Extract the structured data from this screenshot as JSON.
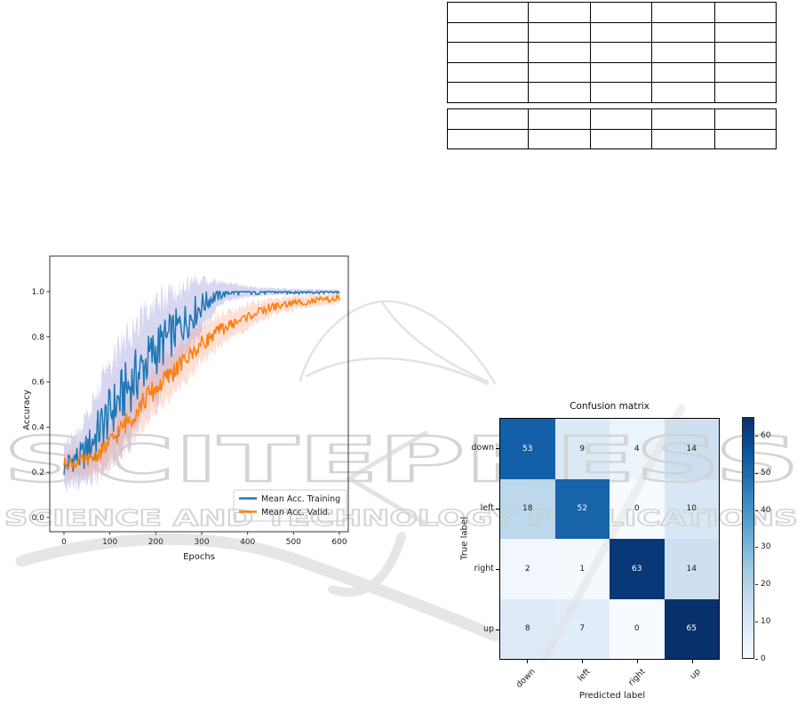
{
  "watermark": {
    "line1": "SCITEPRESS",
    "line2": "SCIENCE AND TECHNOLOGY PUBLICATIONS",
    "color": "#d4d4d4"
  },
  "tables": {
    "section1": {
      "rows": 5,
      "cols": 5
    },
    "section2": {
      "rows": 2,
      "cols": 5
    },
    "cell_text": ""
  },
  "chart_data": [
    {
      "type": "line",
      "title": "",
      "xlabel": "Epochs",
      "ylabel": "Accuracy",
      "xticks": [
        0,
        100,
        200,
        300,
        400,
        500,
        600
      ],
      "yticks": [
        "0.0",
        "0.2",
        "0.4",
        "0.6",
        "0.8",
        "1.0"
      ],
      "xlim": [
        -30,
        620
      ],
      "ylim": [
        -0.05,
        1.16
      ],
      "legend_position": "lower right",
      "series": [
        {
          "name": "Mean Acc. Training",
          "color": "#1f77b4",
          "band_color": "rgba(130,130,216,0.32)",
          "clamp_max": 1.0,
          "keypoints": {
            "epochs": [
              0,
              20,
              40,
              60,
              80,
              100,
              120,
              140,
              160,
              180,
              200,
              220,
              240,
              260,
              280,
              300,
              320,
              340,
              360,
              400,
              450,
              500,
              550,
              600
            ],
            "mean": [
              0.22,
              0.26,
              0.27,
              0.33,
              0.4,
              0.46,
              0.52,
              0.58,
              0.63,
              0.69,
              0.74,
              0.78,
              0.82,
              0.86,
              0.9,
              0.94,
              0.97,
              0.99,
              1.0,
              1.0,
              1.0,
              1.0,
              1.0,
              1.0
            ],
            "noise": [
              0.05,
              0.06,
              0.07,
              0.09,
              0.11,
              0.12,
              0.13,
              0.13,
              0.13,
              0.12,
              0.12,
              0.11,
              0.1,
              0.09,
              0.08,
              0.06,
              0.04,
              0.03,
              0.02,
              0.015,
              0.012,
              0.01,
              0.01,
              0.01
            ],
            "band": [
              0.12,
              0.14,
              0.17,
              0.22,
              0.26,
              0.28,
              0.3,
              0.3,
              0.3,
              0.29,
              0.28,
              0.26,
              0.24,
              0.21,
              0.18,
              0.14,
              0.1,
              0.07,
              0.05,
              0.03,
              0.02,
              0.015,
              0.012,
              0.01
            ]
          }
        },
        {
          "name": "Mean Acc. Valid.",
          "color": "#ff7f0e",
          "band_color": "rgba(247,150,120,0.30)",
          "clamp_max": 0.985,
          "keypoints": {
            "epochs": [
              0,
              20,
              40,
              60,
              80,
              100,
              120,
              140,
              160,
              180,
              200,
              220,
              240,
              260,
              280,
              300,
              320,
              340,
              360,
              400,
              450,
              500,
              550,
              600
            ],
            "mean": [
              0.24,
              0.24,
              0.25,
              0.26,
              0.29,
              0.33,
              0.38,
              0.43,
              0.48,
              0.53,
              0.57,
              0.61,
              0.65,
              0.69,
              0.73,
              0.77,
              0.8,
              0.83,
              0.85,
              0.89,
              0.93,
              0.95,
              0.96,
              0.97
            ],
            "noise": [
              0.025,
              0.025,
              0.03,
              0.03,
              0.035,
              0.04,
              0.045,
              0.05,
              0.05,
              0.05,
              0.05,
              0.045,
              0.045,
              0.04,
              0.04,
              0.035,
              0.03,
              0.03,
              0.025,
              0.02,
              0.02,
              0.015,
              0.015,
              0.015
            ],
            "band": [
              0.07,
              0.08,
              0.09,
              0.1,
              0.12,
              0.13,
              0.14,
              0.15,
              0.15,
              0.15,
              0.14,
              0.14,
              0.13,
              0.12,
              0.12,
              0.11,
              0.1,
              0.09,
              0.08,
              0.07,
              0.05,
              0.04,
              0.035,
              0.03
            ]
          }
        }
      ]
    },
    {
      "type": "heatmap",
      "title": "Confusion matrix",
      "xlabel": "Predicted label",
      "ylabel": "True label",
      "categories": [
        "down",
        "left",
        "right",
        "up"
      ],
      "matrix": [
        [
          53,
          9,
          4,
          14
        ],
        [
          18,
          52,
          0,
          10
        ],
        [
          2,
          1,
          63,
          14
        ],
        [
          8,
          7,
          0,
          65
        ]
      ],
      "vmin": 0,
      "vmax": 65,
      "colorbar_ticks": [
        0,
        10,
        20,
        30,
        40,
        50,
        60
      ],
      "colormap": "Blues"
    }
  ]
}
